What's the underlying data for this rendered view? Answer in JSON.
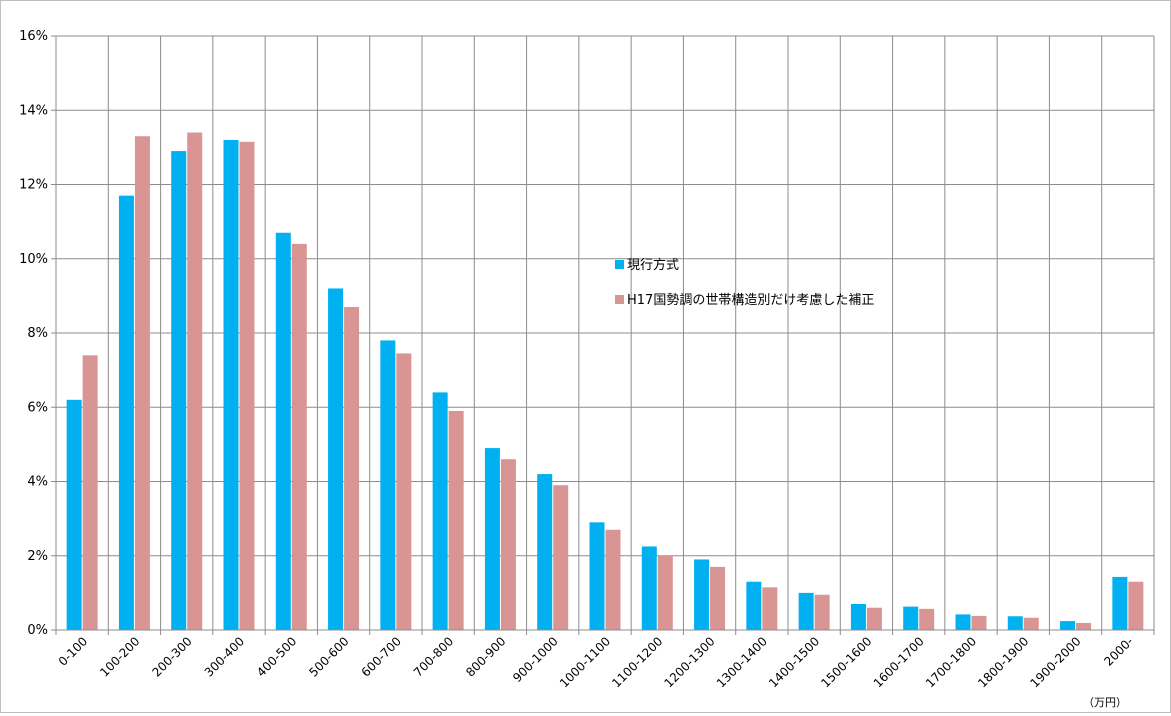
{
  "chart_data": {
    "type": "bar",
    "categories": [
      "0-100",
      "100-200",
      "200-300",
      "300-400",
      "400-500",
      "500-600",
      "600-700",
      "700-800",
      "800-900",
      "900-1000",
      "1000-1100",
      "1100-1200",
      "1200-1300",
      "1300-1400",
      "1400-1500",
      "1500-1600",
      "1600-1700",
      "1700-1800",
      "1800-1900",
      "1900-2000",
      "2000-"
    ],
    "series": [
      {
        "name": "現行方式",
        "color": "#00b0f0",
        "values": [
          6.2,
          11.7,
          12.9,
          13.2,
          10.7,
          9.2,
          7.8,
          6.4,
          4.9,
          4.2,
          2.9,
          2.25,
          1.9,
          1.3,
          1.0,
          0.7,
          0.63,
          0.42,
          0.37,
          0.24,
          1.43
        ]
      },
      {
        "name": "H17国勢調の世帯構造別だけ考慮した補正",
        "color": "#d99594",
        "values": [
          7.4,
          13.3,
          13.4,
          13.15,
          10.4,
          8.7,
          7.45,
          5.9,
          4.6,
          3.9,
          2.7,
          2.0,
          1.7,
          1.15,
          0.95,
          0.6,
          0.57,
          0.38,
          0.33,
          0.19,
          1.3
        ]
      }
    ],
    "yticks": [
      "0%",
      "2%",
      "4%",
      "6%",
      "8%",
      "10%",
      "12%",
      "14%",
      "16%"
    ],
    "ylim": [
      0,
      16
    ],
    "unit_label": "（万円）",
    "grid": true,
    "legend_position": "center-right"
  }
}
